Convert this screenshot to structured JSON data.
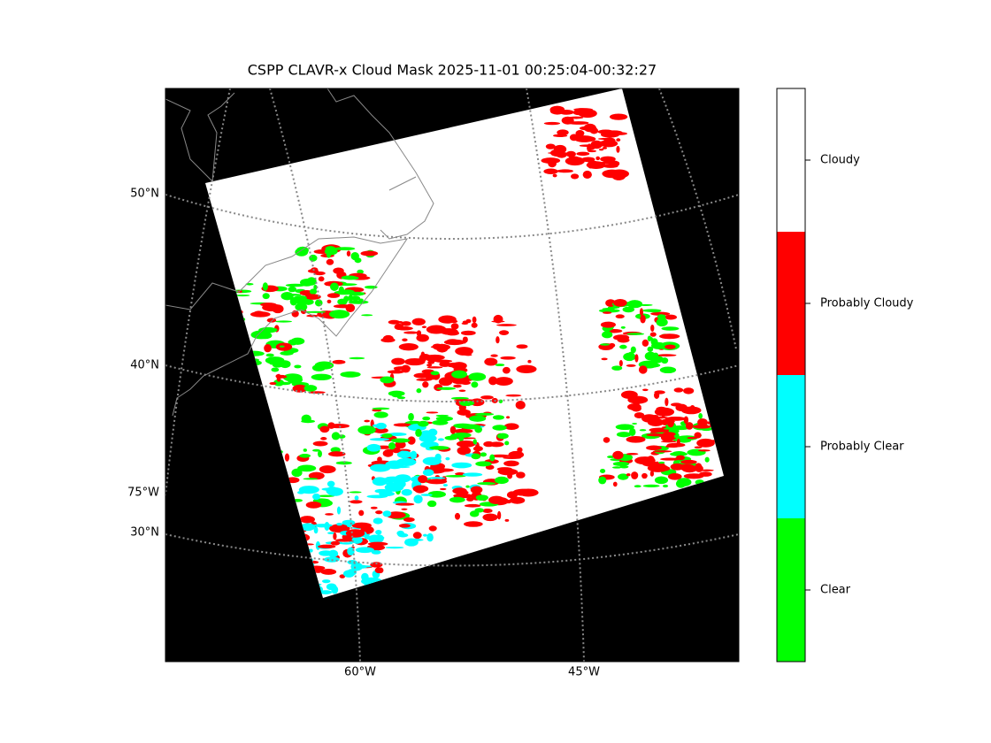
{
  "map": {
    "title": "CSPP CLAVR-x Cloud Mask 2025-11-01 00:25:04-00:32:27",
    "lat_labels": [
      "50°N",
      "40°N",
      "30°N"
    ],
    "lon_labels_left": [
      "75°W"
    ],
    "lon_labels_bottom": [
      "60°W",
      "45°W"
    ],
    "colorbar": [
      {
        "label": "Cloudy",
        "color": "#ffffff"
      },
      {
        "label": "Probably Cloudy",
        "color": "#ff0000"
      },
      {
        "label": "Probably Clear",
        "color": "#00ffff"
      },
      {
        "label": "Clear",
        "color": "#00ff00"
      }
    ]
  }
}
